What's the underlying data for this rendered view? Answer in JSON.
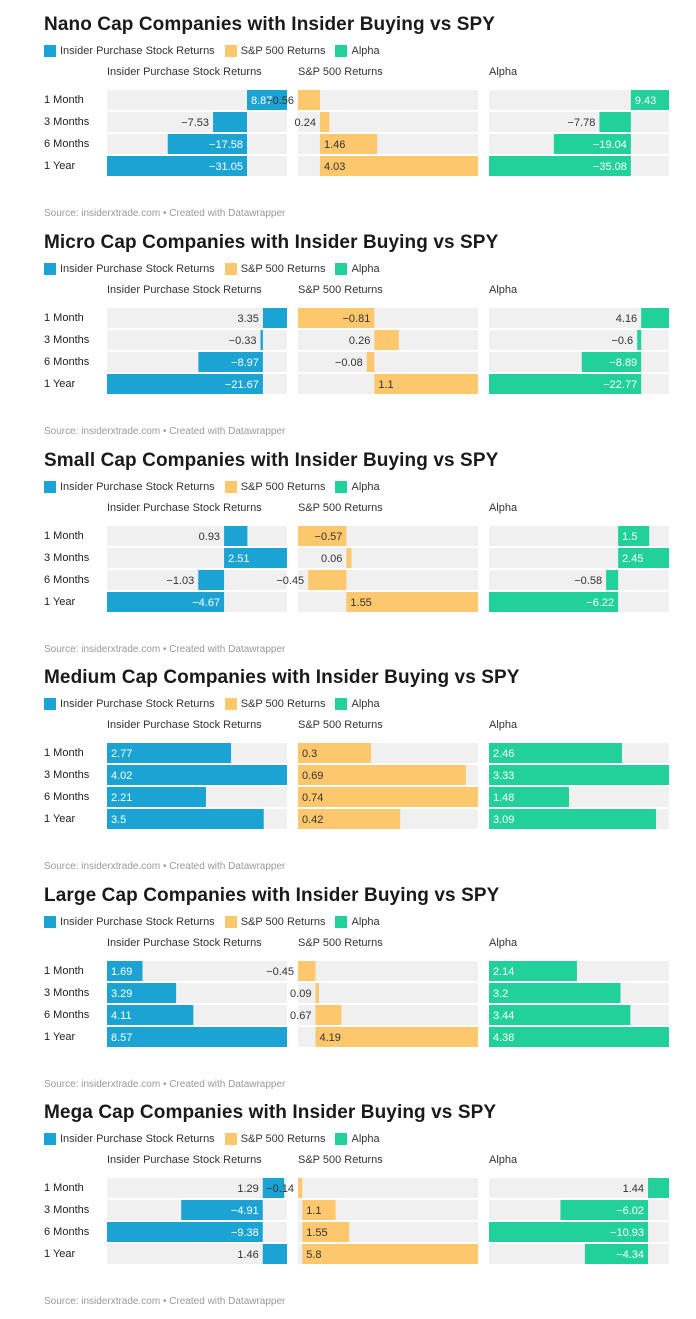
{
  "colors": {
    "insider": "#1ba3d3",
    "sp500": "#fdc76e",
    "alpha": "#21d199",
    "track": "#f0f0f0"
  },
  "legend": {
    "insider": "Insider Purchase Stock Returns",
    "sp500": "S&P 500 Returns",
    "alpha": "Alpha"
  },
  "columns": [
    "Insider Purchase Stock Returns",
    "S&P 500 Returns",
    "Alpha"
  ],
  "row_labels": [
    "1 Month",
    "3 Months",
    "6 Months",
    "1 Year"
  ],
  "source": "Source: insiderxtrade.com • Created with Datawrapper",
  "chart_data": [
    {
      "type": "bar",
      "title": "Nano Cap Companies with Insider Buying vs SPY",
      "categories": [
        "1 Month",
        "3 Months",
        "6 Months",
        "1 Year"
      ],
      "series": [
        {
          "name": "Insider Purchase Stock Returns",
          "values": [
            8.87,
            -7.53,
            -17.58,
            -31.05
          ]
        },
        {
          "name": "S&P 500 Returns",
          "values": [
            -0.56,
            0.24,
            1.46,
            4.03
          ]
        },
        {
          "name": "Alpha",
          "values": [
            9.43,
            -7.78,
            -19.04,
            -35.08
          ]
        }
      ]
    },
    {
      "type": "bar",
      "title": "Micro Cap Companies with Insider Buying vs SPY",
      "categories": [
        "1 Month",
        "3 Months",
        "6 Months",
        "1 Year"
      ],
      "series": [
        {
          "name": "Insider Purchase Stock Returns",
          "values": [
            3.35,
            -0.33,
            -8.97,
            -21.67
          ]
        },
        {
          "name": "S&P 500 Returns",
          "values": [
            -0.81,
            0.26,
            -0.08,
            1.1
          ]
        },
        {
          "name": "Alpha",
          "values": [
            4.16,
            -0.6,
            -8.89,
            -22.77
          ]
        }
      ]
    },
    {
      "type": "bar",
      "title": "Small Cap Companies with Insider Buying vs SPY",
      "categories": [
        "1 Month",
        "3 Months",
        "6 Months",
        "1 Year"
      ],
      "series": [
        {
          "name": "Insider Purchase Stock Returns",
          "values": [
            0.93,
            2.51,
            -1.03,
            -4.67
          ]
        },
        {
          "name": "S&P 500 Returns",
          "values": [
            -0.57,
            0.06,
            -0.45,
            1.55
          ]
        },
        {
          "name": "Alpha",
          "values": [
            1.5,
            2.45,
            -0.58,
            -6.22
          ]
        }
      ]
    },
    {
      "type": "bar",
      "title": "Medium Cap Companies with Insider Buying vs SPY",
      "categories": [
        "1 Month",
        "3 Months",
        "6 Months",
        "1 Year"
      ],
      "series": [
        {
          "name": "Insider Purchase Stock Returns",
          "values": [
            2.77,
            4.02,
            2.21,
            3.5
          ]
        },
        {
          "name": "S&P 500 Returns",
          "values": [
            0.3,
            0.69,
            0.74,
            0.42
          ]
        },
        {
          "name": "Alpha",
          "values": [
            2.46,
            3.33,
            1.48,
            3.09
          ]
        }
      ]
    },
    {
      "type": "bar",
      "title": "Large Cap Companies with Insider Buying vs SPY",
      "categories": [
        "1 Month",
        "3 Months",
        "6 Months",
        "1 Year"
      ],
      "series": [
        {
          "name": "Insider Purchase Stock Returns",
          "values": [
            1.69,
            3.29,
            4.11,
            8.57
          ]
        },
        {
          "name": "S&P 500 Returns",
          "values": [
            -0.45,
            0.09,
            0.67,
            4.19
          ]
        },
        {
          "name": "Alpha",
          "values": [
            2.14,
            3.2,
            3.44,
            4.38
          ]
        }
      ]
    },
    {
      "type": "bar",
      "title": "Mega Cap Companies with Insider Buying vs SPY",
      "categories": [
        "1 Month",
        "3 Months",
        "6 Months",
        "1 Year"
      ],
      "series": [
        {
          "name": "Insider Purchase Stock Returns",
          "values": [
            1.29,
            -4.91,
            -9.38,
            1.46
          ]
        },
        {
          "name": "S&P 500 Returns",
          "values": [
            -0.14,
            1.1,
            1.55,
            5.8
          ]
        },
        {
          "name": "Alpha",
          "values": [
            1.44,
            -6.02,
            -10.93,
            -4.34
          ]
        }
      ]
    }
  ]
}
